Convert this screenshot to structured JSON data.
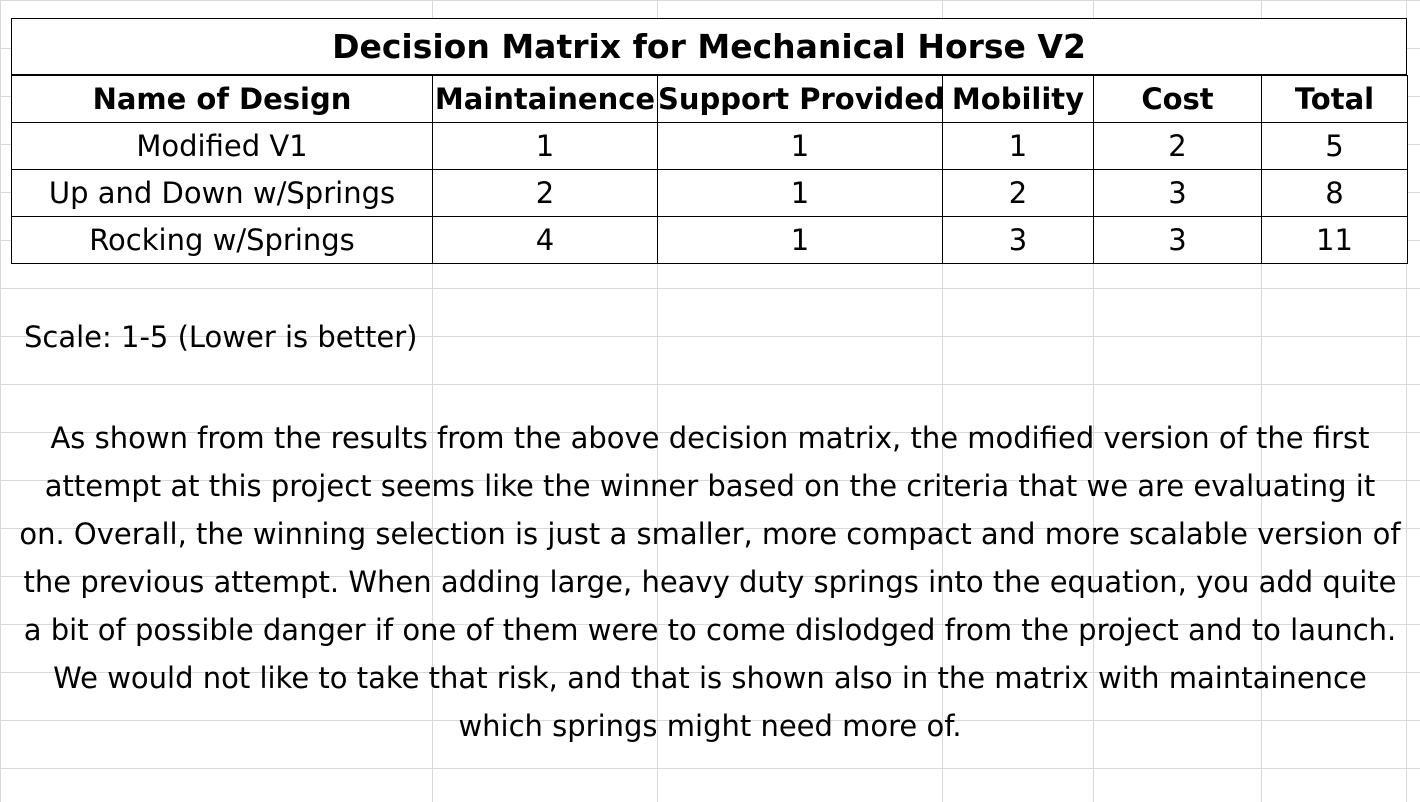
{
  "matrix": {
    "title": "Decision Matrix for Mechanical Horse V2",
    "headers": [
      "Name of Design",
      "Maintainence",
      "Support Provided",
      "Mobility",
      "Cost",
      "Total"
    ],
    "rows": [
      [
        "Modified V1",
        "1",
        "1",
        "1",
        "2",
        "5"
      ],
      [
        "Up and Down w/Springs",
        "2",
        "1",
        "2",
        "3",
        "8"
      ],
      [
        "Rocking w/Springs",
        "4",
        "1",
        "3",
        "3",
        "11"
      ]
    ]
  },
  "scale_note": "Scale: 1-5 (Lower is better)",
  "conclusion": "As shown from the results from the above decision matrix, the modified version of the first attempt at this project seems like the winner based on the criteria that we are evaluating it on. Overall, the winning selection is just a smaller, more compact and more scalable version of the previous attempt. When adding large, heavy duty springs into the equation, you add quite a bit of possible danger if one of them were to come dislodged from the project and to launch. We would not like to take that risk, and that is shown also in the matrix with maintainence which springs might need more of."
}
